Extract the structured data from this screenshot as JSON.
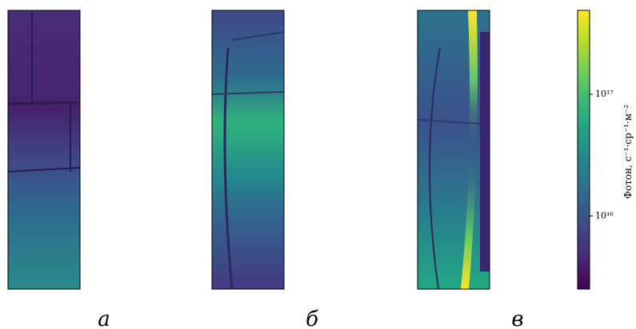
{
  "chart_data": {
    "type": "image",
    "panels": [
      {
        "label": "а"
      },
      {
        "label": "б"
      },
      {
        "label": "в"
      }
    ],
    "colorbar": {
      "label": "Фотон, с⁻¹·ср⁻¹·м⁻²",
      "scale": "log",
      "cmap": "viridis",
      "lim": [
        2500000000000000.0,
        4.9e+17
      ],
      "ticks": [
        {
          "value": 1e+16,
          "label": "10¹⁶"
        },
        {
          "value": 1e+17,
          "label": "10¹⁷"
        }
      ]
    }
  }
}
